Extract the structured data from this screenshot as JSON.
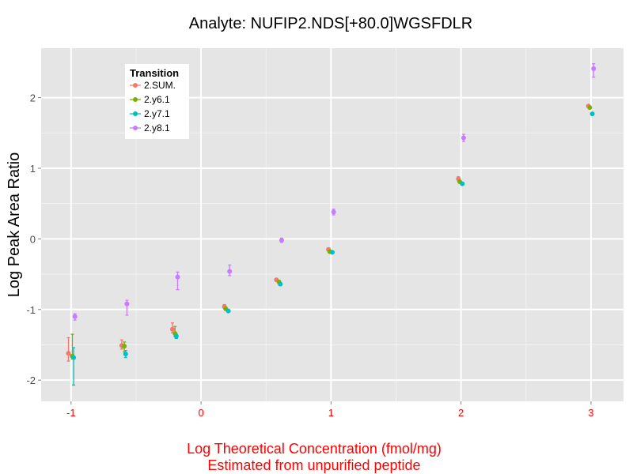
{
  "chart_data": {
    "type": "scatter",
    "title": "Analyte: NUFIP2.NDS[+80.0]WGSFDLR",
    "xlabel_line1": "Log Theoretical Concentration (fmol/mg)",
    "xlabel_line2": "Estimated from unpurified peptide",
    "ylabel": "Log Peak Area Ratio",
    "xlim": [
      -1.23,
      3.25
    ],
    "ylim": [
      -2.3,
      2.7
    ],
    "x_ticks": [
      -1,
      0,
      1,
      2,
      3
    ],
    "x_tick_labels": [
      "-1",
      "0",
      "1",
      "2",
      "3"
    ],
    "y_ticks": [
      -2,
      -1,
      0,
      1,
      2
    ],
    "y_tick_labels": [
      "-2",
      "-1",
      "0",
      "1",
      "2"
    ],
    "grid": true,
    "legend_title": "Transition",
    "legend_position": "top-left",
    "colors": {
      "panel": "#e5e5e5",
      "grid_major": "#ffffff",
      "grid_minor": "#f2f2f2",
      "axis_text_x": "#ff0000",
      "xlabel": "#ff0000",
      "axis_text_y": "#4d4d4d"
    },
    "series": [
      {
        "name": "2.SUM.",
        "color": "#f8766d",
        "points": [
          {
            "x": -1.02,
            "y": -1.62,
            "lo": -1.73,
            "hi": -1.4
          },
          {
            "x": -0.61,
            "y": -1.51,
            "lo": -1.56,
            "hi": -1.43
          },
          {
            "x": -0.22,
            "y": -1.28,
            "lo": -1.33,
            "hi": -1.19
          },
          {
            "x": 0.18,
            "y": -0.96,
            "lo": -0.99,
            "hi": -0.93
          },
          {
            "x": 0.58,
            "y": -0.58,
            "lo": -0.6,
            "hi": -0.56
          },
          {
            "x": 0.98,
            "y": -0.15,
            "lo": -0.17,
            "hi": -0.13
          },
          {
            "x": 1.98,
            "y": 0.85,
            "lo": 0.82,
            "hi": 0.88
          },
          {
            "x": 2.98,
            "y": 1.88,
            "lo": 1.87,
            "hi": 1.89
          }
        ]
      },
      {
        "name": "2.y6.1",
        "color": "#7cae00",
        "points": [
          {
            "x": -0.99,
            "y": -1.66,
            "lo": -1.7,
            "hi": -1.35
          },
          {
            "x": -0.59,
            "y": -1.52,
            "lo": -1.6,
            "hi": -1.46
          },
          {
            "x": -0.2,
            "y": -1.34,
            "lo": -1.38,
            "hi": -1.24
          },
          {
            "x": 0.19,
            "y": -0.99,
            "lo": -1.01,
            "hi": -0.97
          },
          {
            "x": 0.6,
            "y": -0.61,
            "lo": -0.63,
            "hi": -0.59
          },
          {
            "x": 0.99,
            "y": -0.18,
            "lo": -0.19,
            "hi": -0.16
          },
          {
            "x": 1.99,
            "y": 0.81,
            "lo": 0.79,
            "hi": 0.83
          },
          {
            "x": 2.99,
            "y": 1.86,
            "lo": 1.85,
            "hi": 1.87
          }
        ]
      },
      {
        "name": "2.y7.1",
        "color": "#00bfc4",
        "points": [
          {
            "x": -0.98,
            "y": -1.68,
            "lo": -2.07,
            "hi": -1.54
          },
          {
            "x": -0.58,
            "y": -1.63,
            "lo": -1.68,
            "hi": -1.58
          },
          {
            "x": -0.19,
            "y": -1.38,
            "lo": -1.41,
            "hi": -1.35
          },
          {
            "x": 0.21,
            "y": -1.02,
            "lo": -1.04,
            "hi": -1.0
          },
          {
            "x": 0.61,
            "y": -0.64,
            "lo": -0.66,
            "hi": -0.62
          },
          {
            "x": 1.01,
            "y": -0.19,
            "lo": -0.2,
            "hi": -0.18
          },
          {
            "x": 2.01,
            "y": 0.78,
            "lo": 0.76,
            "hi": 0.8
          },
          {
            "x": 3.01,
            "y": 1.77,
            "lo": 1.76,
            "hi": 1.78
          }
        ]
      },
      {
        "name": "2.y8.1",
        "color": "#c77cff",
        "points": [
          {
            "x": -0.97,
            "y": -1.1,
            "lo": -1.15,
            "hi": -1.06
          },
          {
            "x": -0.57,
            "y": -0.92,
            "lo": -1.08,
            "hi": -0.87
          },
          {
            "x": -0.18,
            "y": -0.54,
            "lo": -0.72,
            "hi": -0.47
          },
          {
            "x": 0.22,
            "y": -0.46,
            "lo": -0.52,
            "hi": -0.37
          },
          {
            "x": 0.62,
            "y": -0.02,
            "lo": -0.05,
            "hi": 0.01
          },
          {
            "x": 1.02,
            "y": 0.38,
            "lo": 0.34,
            "hi": 0.42
          },
          {
            "x": 2.02,
            "y": 1.43,
            "lo": 1.38,
            "hi": 1.48
          },
          {
            "x": 3.02,
            "y": 2.41,
            "lo": 2.29,
            "hi": 2.48
          }
        ]
      }
    ]
  }
}
